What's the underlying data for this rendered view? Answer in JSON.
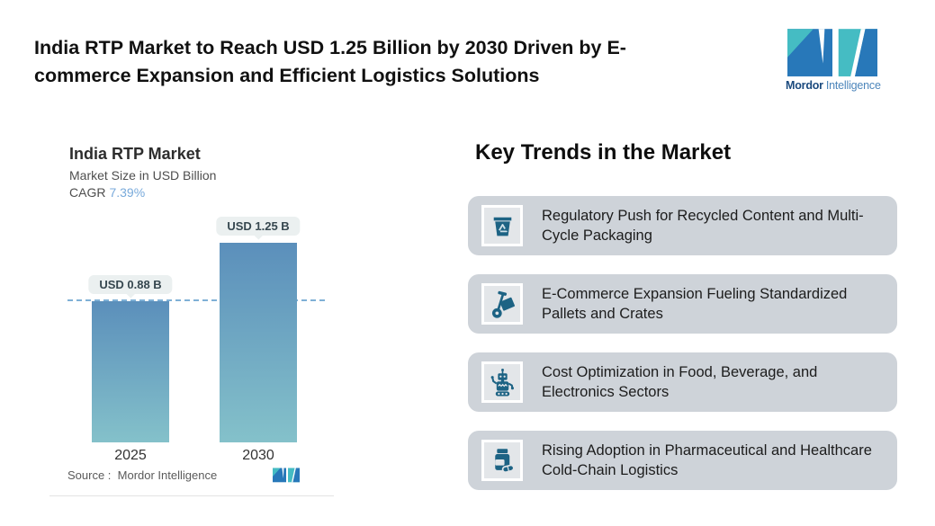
{
  "header": {
    "title_lines": [
      "India RTP Market to Reach USD 1.25 Billion by 2030 Driven by E-",
      "commerce Expansion and Efficient Logistics Solutions"
    ],
    "brand": {
      "name_bold": "Mordor",
      "name_light": "Intelligence",
      "colors": {
        "blue": "#2878b9",
        "teal": "#45bcc3",
        "text_bold": "#1b4a7e",
        "text_light": "#4d86bb"
      }
    }
  },
  "chart_data": {
    "type": "bar",
    "title": "India RTP Market",
    "subtitle": "Market Size in USD Billion",
    "cagr_label": "CAGR",
    "cagr_value": "7.39%",
    "categories": [
      "2025",
      "2030"
    ],
    "values": [
      0.88,
      1.25
    ],
    "bar_labels": [
      "USD 0.88 B",
      "USD 1.25 B"
    ],
    "reference_line_value": 0.88,
    "ylim": [
      0,
      1.45
    ],
    "grid": false,
    "legend": "none",
    "source": "Source :  Mordor Intelligence",
    "bar_gradient": [
      "#5b8fbb",
      "#84c1ca"
    ],
    "reference_line_color": "#7fb0d6"
  },
  "trends": {
    "heading": "Key Trends in the Market",
    "card_bg": "#ced3d9",
    "icon_color": "#1d6384",
    "items": [
      {
        "icon": "recycle-bin-icon",
        "text": "Regulatory Push for Recycled Content and Multi-Cycle Packaging"
      },
      {
        "icon": "hand-truck-icon",
        "text": "E-Commerce Expansion Fueling Standardized Pallets and Crates"
      },
      {
        "icon": "robot-icon",
        "text": "Cost Optimization in Food, Beverage, and Electronics Sectors"
      },
      {
        "icon": "pill-bottle-icon",
        "text": "Rising Adoption in Pharmaceutical and Healthcare Cold-Chain Logistics"
      }
    ]
  }
}
